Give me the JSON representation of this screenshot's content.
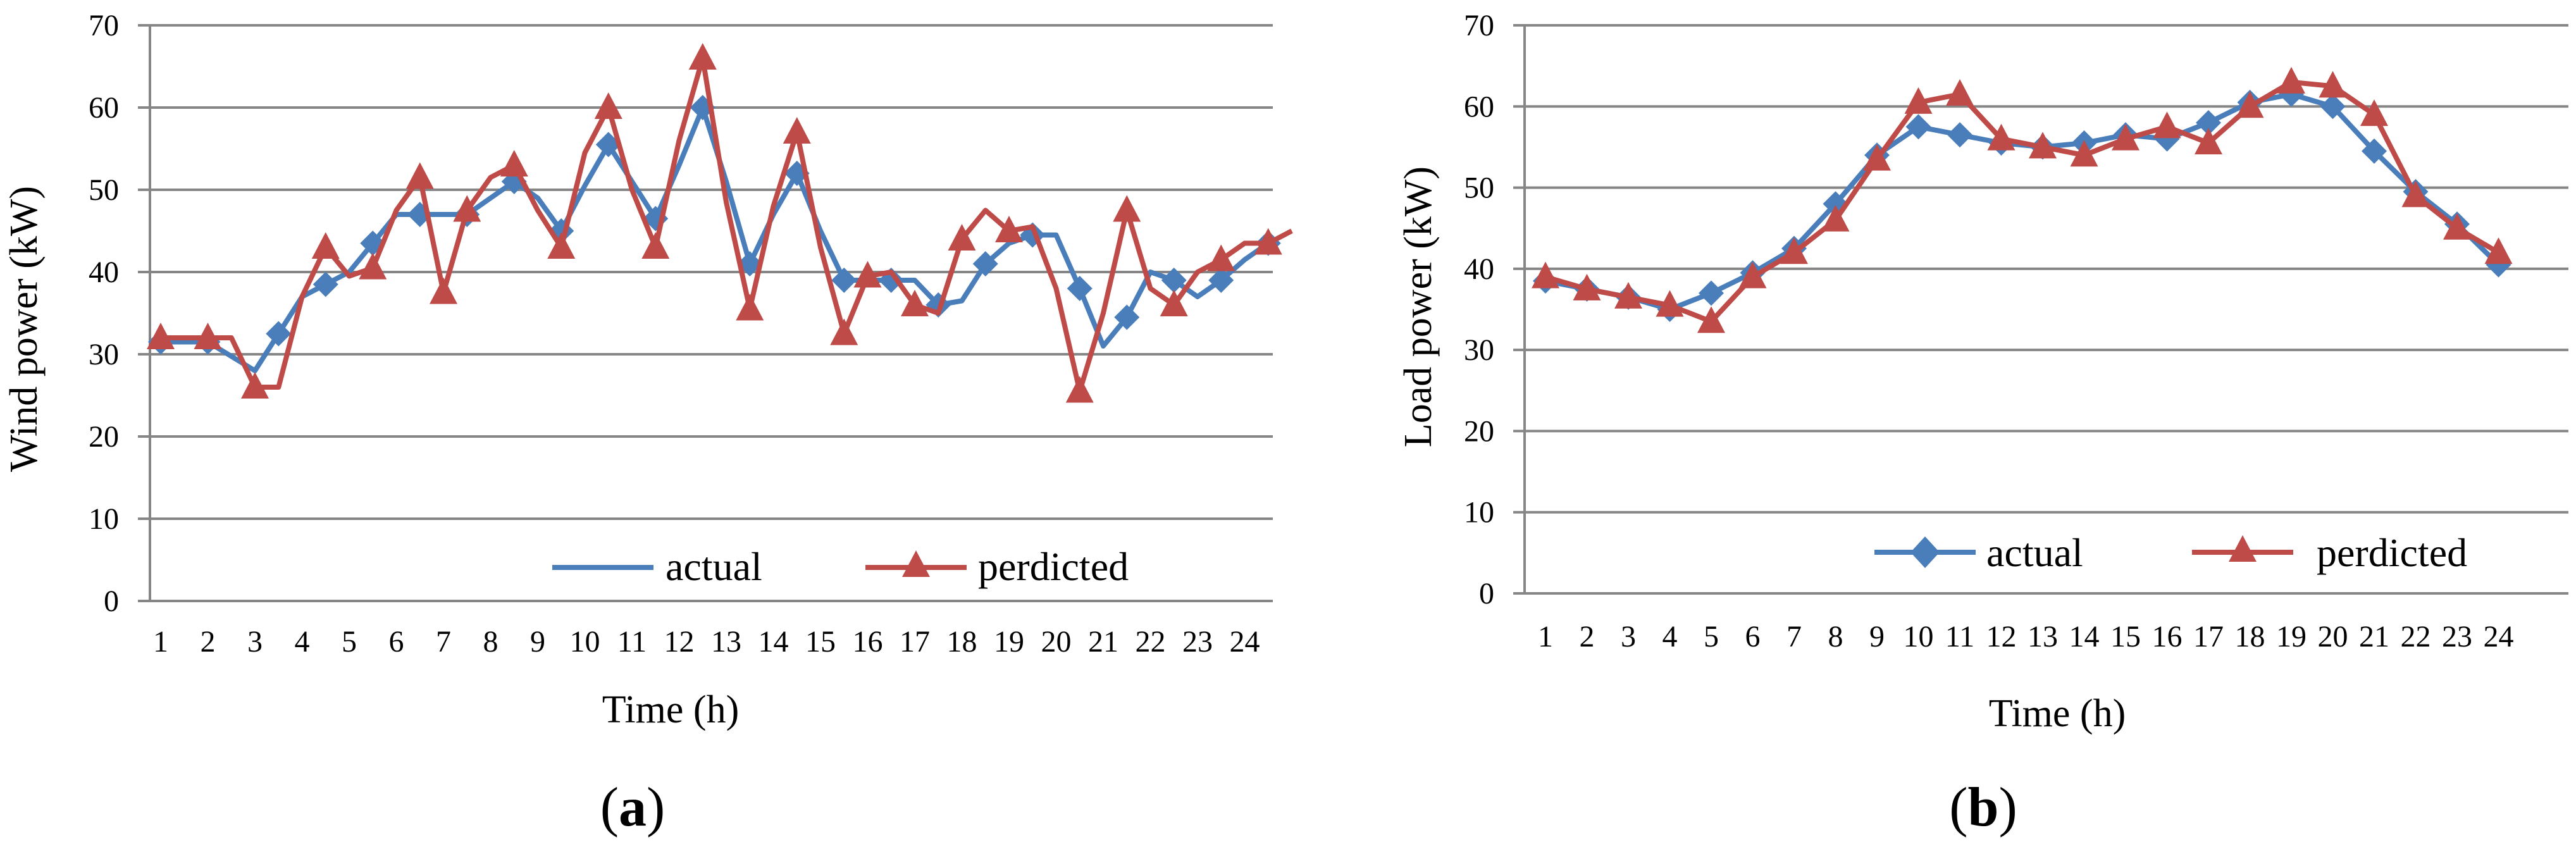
{
  "colors": {
    "actual": "#4A7EBB",
    "predicted": "#BE4B48",
    "grid": "#868686"
  },
  "chart_data": [
    {
      "type": "line",
      "panel_label": "a",
      "xlabel": "Time (h)",
      "ylabel": "Wind power (kW)",
      "ylim": [
        0,
        70
      ],
      "yticks": [
        0,
        10,
        20,
        30,
        40,
        50,
        60,
        70
      ],
      "categories": [
        "1",
        "2",
        "3",
        "4",
        "5",
        "6",
        "7",
        "8",
        "9",
        "10",
        "11",
        "12",
        "13",
        "14",
        "15",
        "16",
        "17",
        "18",
        "19",
        "20",
        "21",
        "22",
        "23",
        "24"
      ],
      "grid": true,
      "legend_position": "bottom-right",
      "series": [
        {
          "name": "actual",
          "marker": "diamond",
          "x": [
            0,
            1,
            2,
            2.5,
            3,
            3.5,
            4,
            4.5,
            5,
            5.5,
            6,
            6.5,
            7,
            7.5,
            8,
            8.5,
            9,
            9.5,
            10,
            10.5,
            11,
            11.5,
            12,
            12.5,
            13,
            13.5,
            14,
            14.5,
            15,
            15.5,
            16,
            16.5,
            17,
            17.5,
            18,
            18.5,
            19,
            19.5,
            20,
            20.5,
            21,
            21.5,
            22,
            22.5,
            23,
            23.5
          ],
          "y": [
            31.5,
            31.5,
            28,
            32.5,
            37,
            38.5,
            40,
            43.5,
            47,
            47,
            47,
            47,
            49,
            51,
            49,
            45,
            50.5,
            55.5,
            51,
            46.5,
            53,
            60,
            51,
            41,
            47,
            52,
            45,
            39,
            39,
            39,
            39,
            36,
            36.5,
            41,
            43.5,
            44.5,
            44.5,
            38,
            31,
            34.5,
            40,
            39,
            37,
            39,
            41.5,
            43.5
          ],
          "markers": [
            0,
            1,
            3,
            5,
            7,
            9,
            11,
            13,
            15,
            17,
            19,
            21,
            23,
            25,
            27,
            29,
            31,
            33,
            35,
            37,
            39,
            41,
            43,
            45
          ]
        },
        {
          "name": "perdicted",
          "marker": "triangle",
          "x": [
            0,
            1,
            1.5,
            2,
            2.5,
            3,
            3.5,
            4,
            4.5,
            5,
            5.5,
            6,
            6.5,
            7,
            7.5,
            8,
            8.5,
            9,
            9.5,
            10,
            10.5,
            11,
            11.5,
            12,
            12.5,
            13,
            13.5,
            14,
            14.5,
            15,
            15.5,
            16,
            16.5,
            17,
            17.5,
            18,
            18.5,
            19,
            19.5,
            20,
            20.5,
            21,
            21.5,
            22,
            22.5,
            23,
            23.5,
            24
          ],
          "y": [
            32,
            32,
            32,
            26,
            26,
            37,
            43,
            39.5,
            40.5,
            47.5,
            51.5,
            37.5,
            47.5,
            51.5,
            53,
            47.5,
            43,
            54.5,
            60,
            50,
            43,
            56,
            66,
            48.5,
            35.5,
            48,
            57,
            43,
            32.5,
            39.5,
            40,
            36,
            35,
            44,
            47.5,
            45,
            45.5,
            38,
            25.5,
            35,
            47.5,
            38,
            36,
            40,
            41.5,
            43.5,
            43.5,
            45
          ],
          "markers": [
            0,
            1,
            3,
            6,
            8,
            10,
            11,
            12,
            14,
            16,
            18,
            20,
            22,
            24,
            26,
            28,
            29,
            31,
            33,
            35,
            38,
            40,
            42,
            44,
            46
          ]
        }
      ]
    },
    {
      "type": "line",
      "panel_label": "b",
      "xlabel": "Time (h)",
      "ylabel": "Load power (kW)",
      "ylim": [
        0,
        70
      ],
      "yticks": [
        0,
        10,
        20,
        30,
        40,
        50,
        60,
        70
      ],
      "categories": [
        "1",
        "2",
        "3",
        "4",
        "5",
        "6",
        "7",
        "8",
        "9",
        "10",
        "11",
        "12",
        "13",
        "14",
        "15",
        "16",
        "17",
        "18",
        "19",
        "20",
        "21",
        "22",
        "23",
        "24"
      ],
      "grid": true,
      "legend_position": "bottom-right",
      "series": [
        {
          "name": "actual",
          "marker": "diamond",
          "y": [
            38.5,
            37.5,
            36.5,
            35,
            37,
            39.5,
            42.5,
            48,
            54,
            57.5,
            56.5,
            55.5,
            55,
            55.5,
            56.5,
            56,
            58,
            60.5,
            61.5,
            60,
            54.5,
            49.5,
            45.5,
            40.5
          ]
        },
        {
          "name": "perdicted",
          "marker": "triangle",
          "y": [
            39,
            37.5,
            36.5,
            35.5,
            33.5,
            39,
            42,
            46,
            53.5,
            60.5,
            61.5,
            56,
            55,
            54,
            56,
            57.5,
            55.5,
            60,
            63,
            62.5,
            59,
            49,
            45,
            42
          ]
        }
      ]
    }
  ]
}
